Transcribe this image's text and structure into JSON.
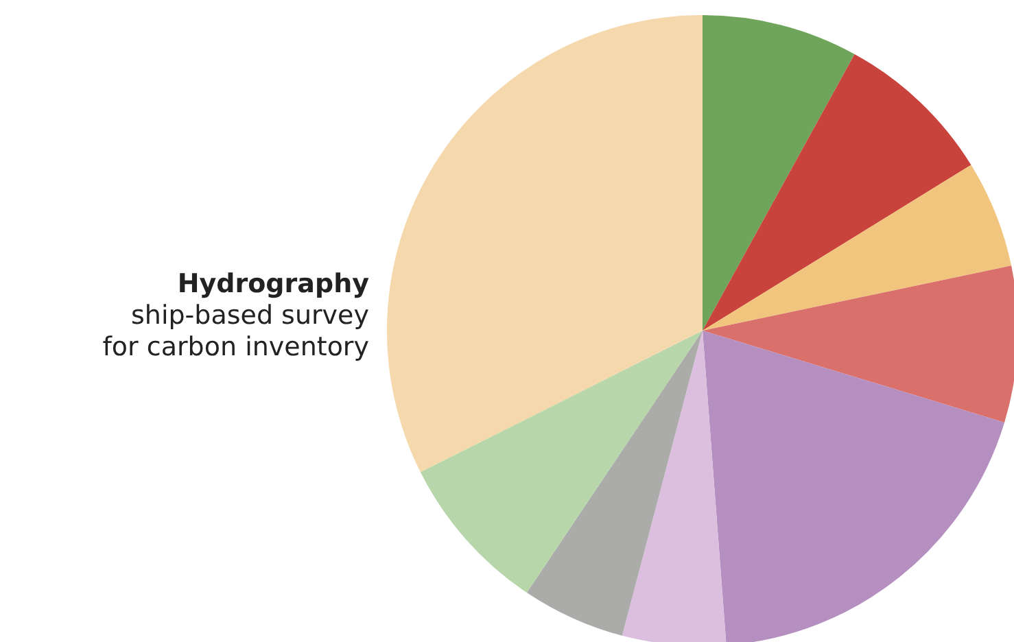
{
  "chart_data": {
    "type": "pie",
    "title": "Hydrography",
    "subtitle": "ship-based survey\nfor carbon inventory",
    "categories": [
      null,
      null,
      null,
      null,
      null,
      null,
      null,
      null,
      null
    ],
    "values": [
      8.0,
      8.2,
      5.5,
      8.0,
      19.1,
      5.3,
      5.3,
      8.2,
      32.4
    ],
    "colors": [
      "#6ea55a",
      "#c9433d",
      "#f2c57f",
      "#d9706b",
      "#b48fc0",
      "#dcbedf",
      "#abacaa",
      "#b7d6aa",
      "#f5d8ac"
    ]
  }
}
